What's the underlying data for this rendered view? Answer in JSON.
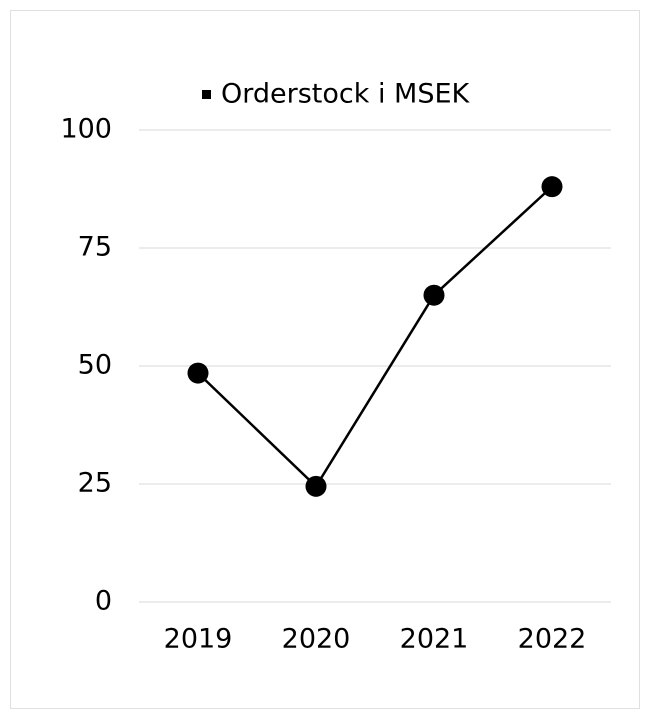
{
  "chart_data": {
    "type": "line",
    "categories": [
      "2019",
      "2020",
      "2021",
      "2022"
    ],
    "series": [
      {
        "name": "Orderstock i MSEK",
        "color": "#000000",
        "values": [
          48.5,
          24.5,
          65,
          88
        ]
      }
    ],
    "ylim": [
      0,
      100
    ],
    "yticks": [
      0,
      25,
      50,
      75,
      100
    ],
    "grid": true,
    "legend": "top"
  }
}
